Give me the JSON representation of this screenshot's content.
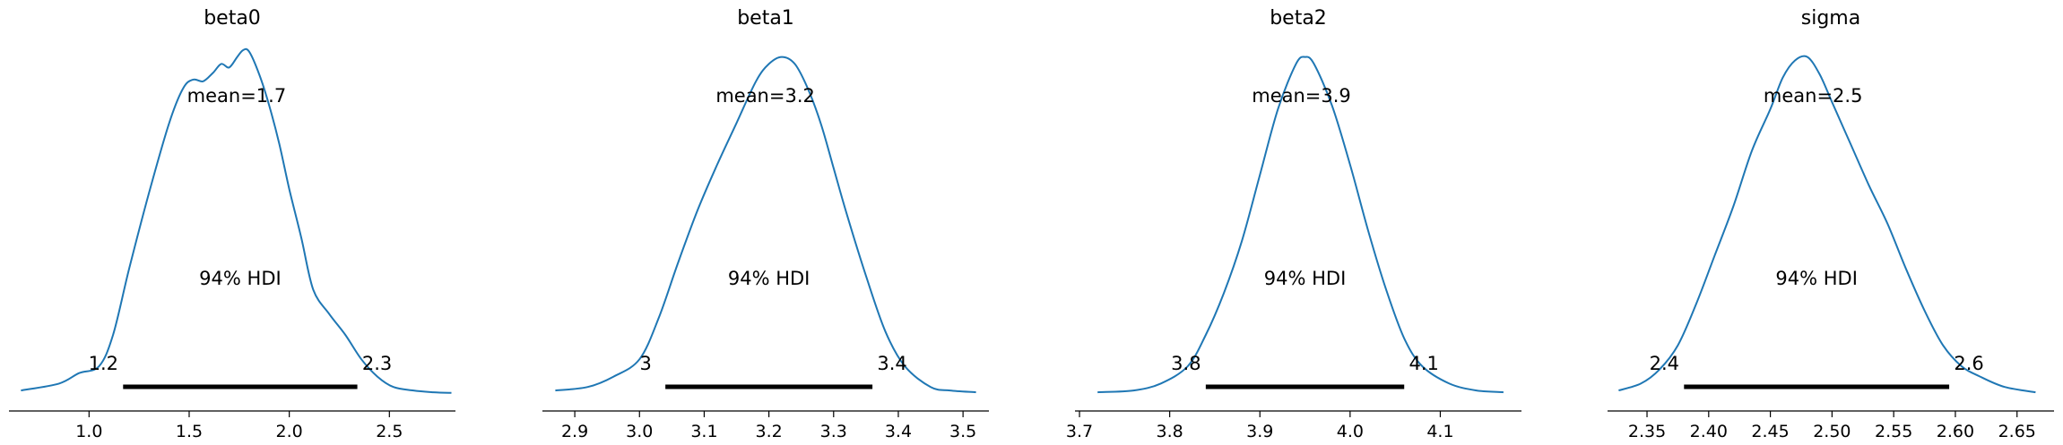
{
  "chart_data": [
    {
      "type": "line",
      "title": "beta0",
      "xlim": [
        0.6,
        2.83
      ],
      "ticks": [
        1.0,
        1.5,
        2.0,
        2.5
      ],
      "tick_labels": [
        "1.0",
        "1.5",
        "2.0",
        "2.5"
      ],
      "density_x": [
        0.66,
        0.85,
        0.95,
        1.05,
        1.12,
        1.2,
        1.3,
        1.4,
        1.47,
        1.52,
        1.57,
        1.62,
        1.66,
        1.7,
        1.74,
        1.77,
        1.8,
        1.85,
        1.9,
        1.95,
        2.0,
        2.06,
        2.12,
        2.2,
        2.28,
        2.36,
        2.44,
        2.52,
        2.62,
        2.72,
        2.81
      ],
      "density_y": [
        0.01,
        0.03,
        0.06,
        0.08,
        0.17,
        0.36,
        0.58,
        0.78,
        0.88,
        0.905,
        0.9,
        0.925,
        0.95,
        0.94,
        0.97,
        0.99,
        0.985,
        0.92,
        0.83,
        0.72,
        0.59,
        0.45,
        0.3,
        0.23,
        0.17,
        0.1,
        0.05,
        0.02,
        0.01,
        0.005,
        0.003
      ],
      "mean_label": "mean=1.7",
      "hdi_label": "94% HDI",
      "hdi": [
        1.17,
        2.34
      ],
      "hdi_low_label": "1.2",
      "hdi_high_label": "2.3",
      "line_color": "#1f77b4"
    },
    {
      "type": "line",
      "title": "beta1",
      "xlim": [
        2.85,
        3.54
      ],
      "ticks": [
        2.9,
        3.0,
        3.1,
        3.2,
        3.3,
        3.4,
        3.5
      ],
      "tick_labels": [
        "2.9",
        "3.0",
        "3.1",
        "3.2",
        "3.3",
        "3.4",
        "3.5"
      ],
      "density_x": [
        2.87,
        2.92,
        2.96,
        3.0,
        3.03,
        3.06,
        3.09,
        3.12,
        3.15,
        3.18,
        3.2,
        3.22,
        3.24,
        3.26,
        3.28,
        3.3,
        3.32,
        3.35,
        3.38,
        3.41,
        3.45,
        3.48,
        3.52
      ],
      "density_y": [
        0.01,
        0.02,
        0.05,
        0.1,
        0.22,
        0.38,
        0.53,
        0.66,
        0.78,
        0.9,
        0.95,
        0.97,
        0.95,
        0.88,
        0.78,
        0.65,
        0.52,
        0.34,
        0.18,
        0.08,
        0.02,
        0.01,
        0.005
      ],
      "mean_label": "mean=3.2",
      "hdi_label": "94% HDI",
      "hdi": [
        3.04,
        3.36
      ],
      "hdi_low_label": "3",
      "hdi_high_label": "3.4",
      "line_color": "#1f77b4"
    },
    {
      "type": "line",
      "title": "beta2",
      "xlim": [
        3.695,
        4.19
      ],
      "ticks": [
        3.7,
        3.8,
        3.9,
        4.0,
        4.1
      ],
      "tick_labels": [
        "3.7",
        "3.8",
        "3.9",
        "4.0",
        "4.1"
      ],
      "density_x": [
        3.72,
        3.76,
        3.79,
        3.82,
        3.84,
        3.86,
        3.88,
        3.9,
        3.92,
        3.94,
        3.95,
        3.96,
        3.98,
        4.0,
        4.02,
        4.04,
        4.06,
        4.08,
        4.11,
        4.14,
        4.17
      ],
      "density_y": [
        0.005,
        0.01,
        0.03,
        0.08,
        0.17,
        0.29,
        0.44,
        0.63,
        0.82,
        0.95,
        0.97,
        0.95,
        0.83,
        0.66,
        0.47,
        0.3,
        0.16,
        0.08,
        0.03,
        0.01,
        0.005
      ],
      "mean_label": "mean=3.9",
      "hdi_label": "94% HDI",
      "hdi": [
        3.84,
        4.06
      ],
      "hdi_low_label": "3.8",
      "hdi_high_label": "4.1",
      "line_color": "#1f77b4"
    },
    {
      "type": "line",
      "title": "sigma",
      "xlim": [
        2.318,
        2.68
      ],
      "ticks": [
        2.35,
        2.4,
        2.45,
        2.5,
        2.55,
        2.6,
        2.65
      ],
      "tick_labels": [
        "2.35",
        "2.40",
        "2.45",
        "2.50",
        "2.55",
        "2.60",
        "2.65"
      ],
      "density_x": [
        2.327,
        2.345,
        2.36,
        2.375,
        2.39,
        2.405,
        2.42,
        2.435,
        2.45,
        2.46,
        2.47,
        2.48,
        2.49,
        2.5,
        2.515,
        2.53,
        2.545,
        2.56,
        2.575,
        2.59,
        2.605,
        2.62,
        2.64,
        2.665
      ],
      "density_y": [
        0.01,
        0.03,
        0.07,
        0.14,
        0.26,
        0.4,
        0.54,
        0.7,
        0.82,
        0.91,
        0.96,
        0.97,
        0.92,
        0.84,
        0.72,
        0.6,
        0.49,
        0.36,
        0.24,
        0.14,
        0.08,
        0.05,
        0.02,
        0.005
      ],
      "mean_label": "mean=2.5",
      "hdi_label": "94% HDI",
      "hdi": [
        2.38,
        2.595
      ],
      "hdi_low_label": "2.4",
      "hdi_high_label": "2.6",
      "line_color": "#1f77b4"
    }
  ]
}
